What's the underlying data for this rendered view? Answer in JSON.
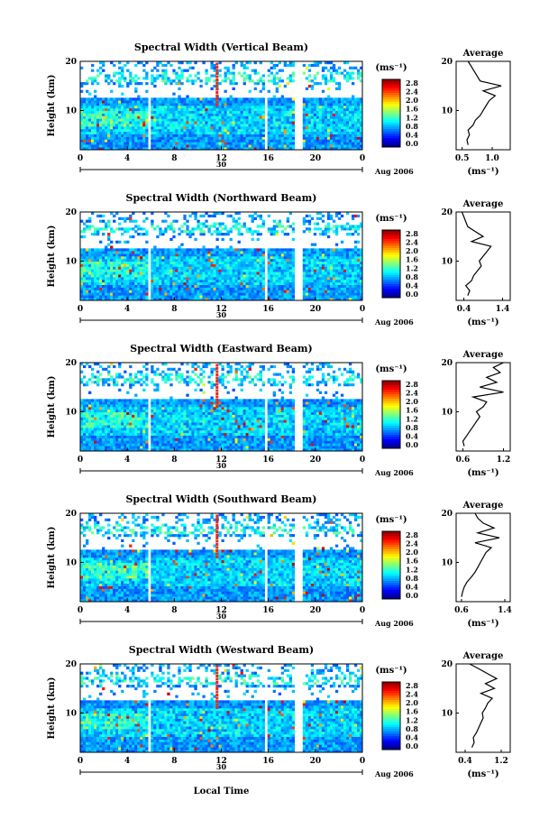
{
  "figure": {
    "bottom_label": "Local Time",
    "date_center_label": "30",
    "date_right_label": "Aug 2006"
  },
  "chart_data": [
    {
      "type": "heatmap",
      "title": "Spectral Width (Vertical Beam)",
      "ylabel": "Height (km)",
      "xlabel": "Local Time",
      "x_ticks": [
        "0",
        "4",
        "8",
        "12",
        "16",
        "20",
        "0"
      ],
      "y_ticks": [
        "20",
        "10"
      ],
      "xlim": [
        0,
        24
      ],
      "ylim": [
        2,
        20
      ],
      "colorbar": {
        "unit": "(ms⁻¹)",
        "ticks": [
          "2.8",
          "2.4",
          "2.0",
          "1.6",
          "1.2",
          "0.8",
          "0.4",
          "0.0"
        ],
        "range": [
          0,
          3.0
        ]
      },
      "data_gaps_hours": [
        [
          5.8,
          6.0
        ],
        [
          15.6,
          15.9
        ],
        [
          18.3,
          19.0
        ]
      ],
      "average_profile": {
        "title": "Average",
        "xlabel": "(ms⁻¹)",
        "x_ticks": [
          "0.5",
          "1.0"
        ],
        "xlim": [
          0.4,
          1.3
        ],
        "y_ticks": [
          "20",
          "10"
        ],
        "ylim": [
          2,
          20
        ],
        "height_km": [
          3,
          4,
          5,
          6,
          7,
          8,
          9,
          10,
          11,
          12,
          13,
          14,
          15,
          16,
          17,
          18,
          19,
          20
        ],
        "width_ms": [
          0.6,
          0.58,
          0.62,
          0.6,
          0.68,
          0.72,
          0.8,
          0.85,
          0.9,
          0.95,
          1.05,
          0.85,
          1.15,
          0.8,
          0.75,
          0.7,
          0.65,
          0.6
        ]
      }
    },
    {
      "type": "heatmap",
      "title": "Spectral Width (Northward Beam)",
      "ylabel": "Height (km)",
      "xlabel": "Local Time",
      "x_ticks": [
        "0",
        "4",
        "8",
        "12",
        "16",
        "20",
        "0"
      ],
      "y_ticks": [
        "20",
        "10"
      ],
      "xlim": [
        0,
        24
      ],
      "ylim": [
        2,
        20
      ],
      "colorbar": {
        "unit": "(ms⁻¹)",
        "ticks": [
          "2.8",
          "2.4",
          "2.0",
          "1.6",
          "1.2",
          "0.8",
          "0.4",
          "0.0"
        ],
        "range": [
          0,
          3.0
        ]
      },
      "data_gaps_hours": [
        [
          5.8,
          6.0
        ],
        [
          15.6,
          15.9
        ],
        [
          18.3,
          19.0
        ]
      ],
      "average_profile": {
        "title": "Average",
        "xlabel": "(ms⁻¹)",
        "x_ticks": [
          "0.4",
          "1.4"
        ],
        "xlim": [
          0.2,
          1.6
        ],
        "y_ticks": [
          "20",
          "10"
        ],
        "ylim": [
          2,
          20
        ],
        "height_km": [
          3,
          4,
          5,
          6,
          7,
          8,
          9,
          10,
          11,
          12,
          13,
          14,
          15,
          16,
          17,
          18,
          19,
          20
        ],
        "width_ms": [
          0.5,
          0.55,
          0.45,
          0.6,
          0.65,
          0.75,
          0.85,
          0.8,
          0.9,
          1.0,
          1.1,
          0.6,
          0.9,
          0.7,
          0.5,
          0.45,
          0.4,
          0.35
        ]
      }
    },
    {
      "type": "heatmap",
      "title": "Spectral Width (Eastward Beam)",
      "ylabel": "Height (km)",
      "xlabel": "Local Time",
      "x_ticks": [
        "0",
        "4",
        "8",
        "12",
        "16",
        "20",
        "0"
      ],
      "y_ticks": [
        "20",
        "10"
      ],
      "xlim": [
        0,
        24
      ],
      "ylim": [
        2,
        20
      ],
      "colorbar": {
        "unit": "(ms⁻¹)",
        "ticks": [
          "2.8",
          "2.4",
          "2.0",
          "1.6",
          "1.2",
          "0.8",
          "0.4",
          "0.0"
        ],
        "range": [
          0,
          3.0
        ]
      },
      "data_gaps_hours": [
        [
          5.8,
          6.0
        ],
        [
          15.6,
          15.9
        ],
        [
          18.3,
          19.0
        ]
      ],
      "average_profile": {
        "title": "Average",
        "xlabel": "(ms⁻¹)",
        "x_ticks": [
          "0.6",
          "1.2"
        ],
        "xlim": [
          0.5,
          1.3
        ],
        "y_ticks": [
          "20",
          "10"
        ],
        "ylim": [
          2,
          20
        ],
        "height_km": [
          3,
          4,
          5,
          6,
          7,
          8,
          9,
          10,
          11,
          12,
          13,
          14,
          15,
          16,
          17,
          18,
          19,
          20
        ],
        "width_ms": [
          0.62,
          0.6,
          0.65,
          0.7,
          0.75,
          0.8,
          0.85,
          0.8,
          0.9,
          0.95,
          0.75,
          1.2,
          0.85,
          1.1,
          0.95,
          1.15,
          1.05,
          1.2
        ]
      }
    },
    {
      "type": "heatmap",
      "title": "Spectral Width (Southward Beam)",
      "ylabel": "Height (km)",
      "xlabel": "Local Time",
      "x_ticks": [
        "0",
        "4",
        "8",
        "12",
        "16",
        "20",
        "0"
      ],
      "y_ticks": [
        "20",
        "10"
      ],
      "xlim": [
        0,
        24
      ],
      "ylim": [
        2,
        20
      ],
      "colorbar": {
        "unit": "(ms⁻¹)",
        "ticks": [
          "2.8",
          "2.4",
          "2.0",
          "1.6",
          "1.2",
          "0.8",
          "0.4",
          "0.0"
        ],
        "range": [
          0,
          3.0
        ]
      },
      "data_gaps_hours": [
        [
          5.8,
          6.0
        ],
        [
          15.6,
          15.9
        ],
        [
          18.3,
          19.0
        ]
      ],
      "average_profile": {
        "title": "Average",
        "xlabel": "(ms⁻¹)",
        "x_ticks": [
          "0.6",
          "1.4"
        ],
        "xlim": [
          0.5,
          1.5
        ],
        "y_ticks": [
          "20",
          "10"
        ],
        "ylim": [
          2,
          20
        ],
        "height_km": [
          3,
          4,
          5,
          6,
          7,
          8,
          9,
          10,
          11,
          12,
          13,
          14,
          15,
          16,
          17,
          18,
          19,
          20
        ],
        "width_ms": [
          0.6,
          0.62,
          0.65,
          0.7,
          0.78,
          0.85,
          0.9,
          0.95,
          1.0,
          1.05,
          1.15,
          0.85,
          1.3,
          0.9,
          1.2,
          1.0,
          0.9,
          0.85
        ]
      }
    },
    {
      "type": "heatmap",
      "title": "Spectral Width (Westward Beam)",
      "ylabel": "Height (km)",
      "xlabel": "Local Time",
      "x_ticks": [
        "0",
        "4",
        "8",
        "12",
        "16",
        "20",
        "0"
      ],
      "y_ticks": [
        "20",
        "10"
      ],
      "xlim": [
        0,
        24
      ],
      "ylim": [
        2,
        20
      ],
      "colorbar": {
        "unit": "(ms⁻¹)",
        "ticks": [
          "2.8",
          "2.4",
          "2.0",
          "1.6",
          "1.2",
          "0.8",
          "0.4",
          "0.0"
        ],
        "range": [
          0,
          3.0
        ]
      },
      "data_gaps_hours": [
        [
          5.8,
          6.0
        ],
        [
          15.6,
          15.9
        ],
        [
          18.3,
          19.0
        ]
      ],
      "average_profile": {
        "title": "Average",
        "xlabel": "(ms⁻¹)",
        "x_ticks": [
          "0.4",
          "1.2"
        ],
        "xlim": [
          0.2,
          1.4
        ],
        "y_ticks": [
          "20",
          "10"
        ],
        "ylim": [
          2,
          20
        ],
        "height_km": [
          3,
          4,
          5,
          6,
          7,
          8,
          9,
          10,
          11,
          12,
          13,
          14,
          15,
          16,
          17,
          18,
          19,
          20
        ],
        "width_ms": [
          0.55,
          0.6,
          0.58,
          0.65,
          0.7,
          0.75,
          0.8,
          0.78,
          0.85,
          0.9,
          1.0,
          0.75,
          1.05,
          0.85,
          1.1,
          0.9,
          0.7,
          0.5
        ]
      }
    }
  ]
}
